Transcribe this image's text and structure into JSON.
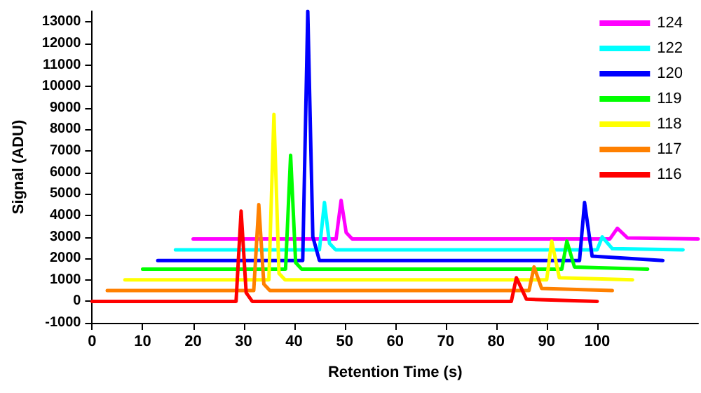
{
  "chart_data": {
    "type": "line",
    "xlabel": "Retention Time (s)",
    "ylabel": "Signal (ADU)",
    "xlim": [
      0,
      120
    ],
    "xticks": [
      0,
      10,
      20,
      30,
      40,
      50,
      60,
      70,
      80,
      90,
      100
    ],
    "ylim": [
      -1000,
      13500
    ],
    "yticks": [
      -1000,
      0,
      1000,
      2000,
      3000,
      4000,
      5000,
      6000,
      7000,
      8000,
      9000,
      10000,
      11000,
      12000,
      13000
    ],
    "grid": false,
    "legend": "top right",
    "series": [
      {
        "name": "124",
        "color": "#ff00ff",
        "x": [
          20,
          48.3,
          49.3,
          50.3,
          51.5,
          102.5,
          104,
          106,
          120
        ],
        "values": [
          2900,
          2900,
          4700,
          3200,
          2900,
          2900,
          3400,
          2950,
          2900
        ]
      },
      {
        "name": "122",
        "color": "#00ffff",
        "x": [
          16.5,
          45,
          46,
          47,
          48.2,
          100,
          101,
          103,
          117
        ],
        "values": [
          2400,
          2400,
          4600,
          2700,
          2400,
          2400,
          3000,
          2450,
          2400
        ]
      },
      {
        "name": "120",
        "color": "#0000ff",
        "x": [
          13,
          41.7,
          42.7,
          43.7,
          45,
          96.5,
          97.5,
          99,
          113
        ],
        "values": [
          1900,
          1900,
          13500,
          3000,
          1900,
          1900,
          4600,
          2100,
          1900
        ]
      },
      {
        "name": "119",
        "color": "#00ff00",
        "x": [
          10,
          38.3,
          39.3,
          40.3,
          41.5,
          93,
          94,
          95.5,
          110
        ],
        "values": [
          1500,
          1500,
          6800,
          1800,
          1500,
          1500,
          2800,
          1600,
          1500
        ]
      },
      {
        "name": "118",
        "color": "#ffff00",
        "x": [
          6.5,
          35,
          36,
          37,
          38.2,
          90,
          91,
          92.5,
          107
        ],
        "values": [
          1000,
          1000,
          8700,
          1300,
          1000,
          1000,
          2800,
          1100,
          1000
        ]
      },
      {
        "name": "117",
        "color": "#ff8000",
        "x": [
          3,
          32,
          33,
          34,
          35.2,
          86.5,
          87.5,
          89,
          103
        ],
        "values": [
          500,
          500,
          4500,
          800,
          500,
          500,
          1600,
          600,
          500
        ]
      },
      {
        "name": "116",
        "color": "#ff0000",
        "x": [
          0,
          28.5,
          29.5,
          30.5,
          31.7,
          83,
          84,
          86,
          100
        ],
        "values": [
          0,
          0,
          4200,
          400,
          0,
          0,
          1100,
          100,
          0
        ]
      }
    ]
  }
}
